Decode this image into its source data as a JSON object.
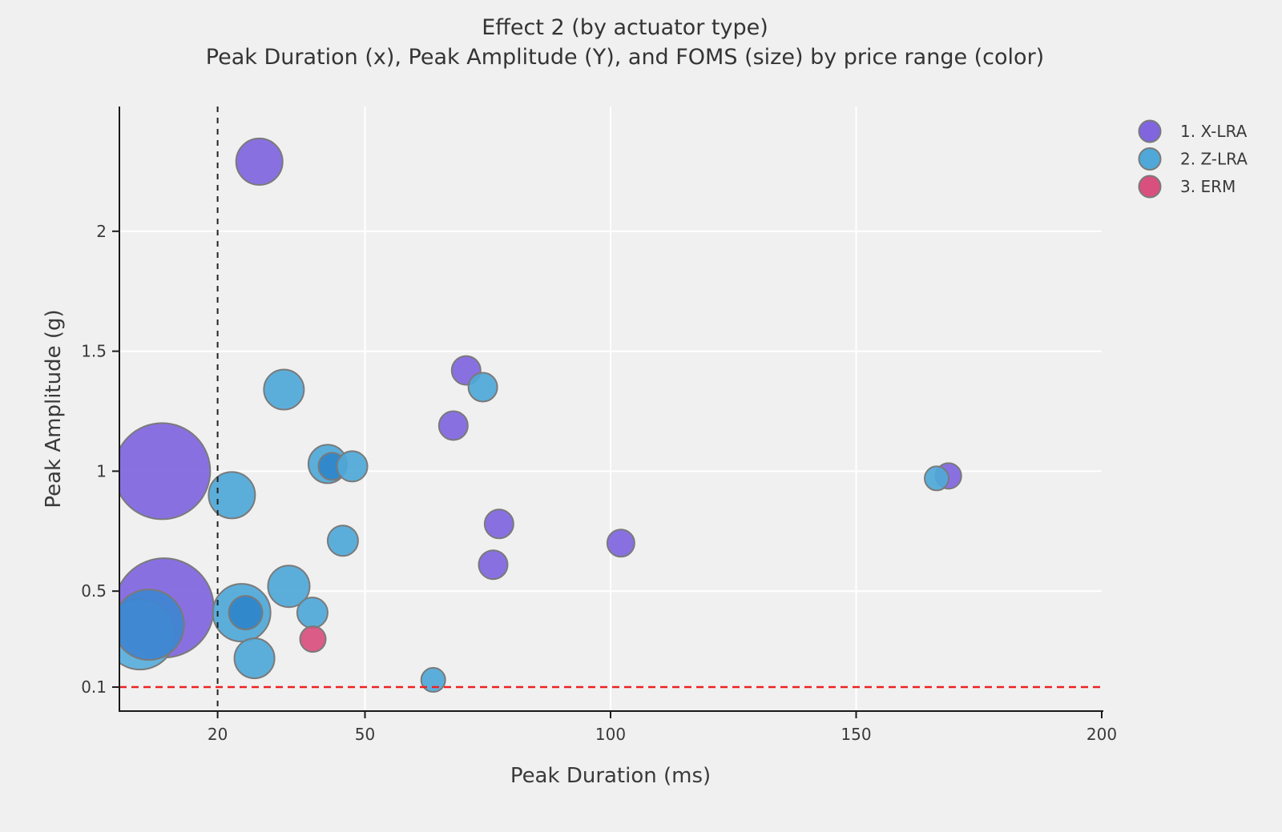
{
  "title": "Effect 2 (by actuator type)",
  "subtitle": "Peak Duration (x), Peak Amplitude (Y), and FOMS (size) by price range (color)",
  "chart_data": {
    "type": "scatter",
    "subtype": "bubble",
    "title": "Effect 2 (by actuator type)",
    "subtitle": "Peak Duration (x), Peak Amplitude (Y), and FOMS (size) by price range (color)",
    "xlabel": "Peak Duration (ms)",
    "ylabel": "Peak Amplitude (g)",
    "xlim": [
      0,
      200
    ],
    "ylim": [
      0,
      2.52
    ],
    "xticks": [
      20,
      50,
      100,
      150,
      200
    ],
    "yticks": [
      0.1,
      0.5,
      1,
      1.5,
      2
    ],
    "grid": true,
    "gridline_xticks": [
      50,
      100,
      150
    ],
    "gridline_yticks": [
      0.5,
      1,
      1.5,
      2
    ],
    "grid_color": "#ffffff",
    "background_color": "#f0f0f0",
    "reference_lines": {
      "vline": {
        "x": 20,
        "style": "dashed",
        "color": "#222222"
      },
      "hline": {
        "y": 0.1,
        "style": "dashed",
        "color": "#ee2222"
      }
    },
    "bubble_stroke_color": "#7a7a7a",
    "legend": {
      "position": "top-right",
      "entries": [
        {
          "label": "1. X-LRA",
          "color": "#8065DF"
        },
        {
          "label": "2. Z-LRA",
          "color": "#4FA8D8"
        },
        {
          "label": "3. ERM",
          "color": "#D94F7E"
        }
      ]
    },
    "size_note": "r = bubble radius in screen px (FOMS magnitude, relative)",
    "series": [
      {
        "name": "1. X-LRA",
        "color": "#8065DF",
        "points": [
          {
            "x": 28.5,
            "y": 2.29,
            "r": 29
          },
          {
            "x": 70.6,
            "y": 1.42,
            "r": 18
          },
          {
            "x": 68.0,
            "y": 1.19,
            "r": 18
          },
          {
            "x": 8.7,
            "y": 1.0,
            "r": 60
          },
          {
            "x": 77.3,
            "y": 0.78,
            "r": 18
          },
          {
            "x": 102.1,
            "y": 0.7,
            "r": 17
          },
          {
            "x": 168.8,
            "y": 0.98,
            "r": 16
          },
          {
            "x": 76.1,
            "y": 0.61,
            "r": 18
          },
          {
            "x": 9.1,
            "y": 0.43,
            "r": 62
          }
        ]
      },
      {
        "name": "2. Z-LRA",
        "color": "#4FA8D8",
        "points": [
          {
            "x": 4.2,
            "y": 0.32,
            "r": 44,
            "fill": "#58AEDC"
          },
          {
            "x": 6.0,
            "y": 0.36,
            "r": 44,
            "fill": "#3E86D0"
          },
          {
            "x": 33.5,
            "y": 1.34,
            "r": 25
          },
          {
            "x": 74.0,
            "y": 1.35,
            "r": 18
          },
          {
            "x": 42.4,
            "y": 1.03,
            "r": 24
          },
          {
            "x": 43.3,
            "y": 1.02,
            "r": 17,
            "fill": "#2E86CB"
          },
          {
            "x": 47.4,
            "y": 1.02,
            "r": 19
          },
          {
            "x": 22.9,
            "y": 0.9,
            "r": 29
          },
          {
            "x": 45.5,
            "y": 0.71,
            "r": 19
          },
          {
            "x": 34.5,
            "y": 0.52,
            "r": 26
          },
          {
            "x": 24.9,
            "y": 0.41,
            "r": 36
          },
          {
            "x": 25.7,
            "y": 0.41,
            "r": 21,
            "fill": "#2E86CB"
          },
          {
            "x": 39.3,
            "y": 0.41,
            "r": 19
          },
          {
            "x": 27.5,
            "y": 0.22,
            "r": 25
          },
          {
            "x": 63.9,
            "y": 0.13,
            "r": 15
          },
          {
            "x": 166.4,
            "y": 0.97,
            "r": 15
          }
        ]
      },
      {
        "name": "3. ERM",
        "color": "#D94F7E",
        "points": [
          {
            "x": 39.4,
            "y": 0.3,
            "r": 16
          }
        ]
      }
    ]
  }
}
